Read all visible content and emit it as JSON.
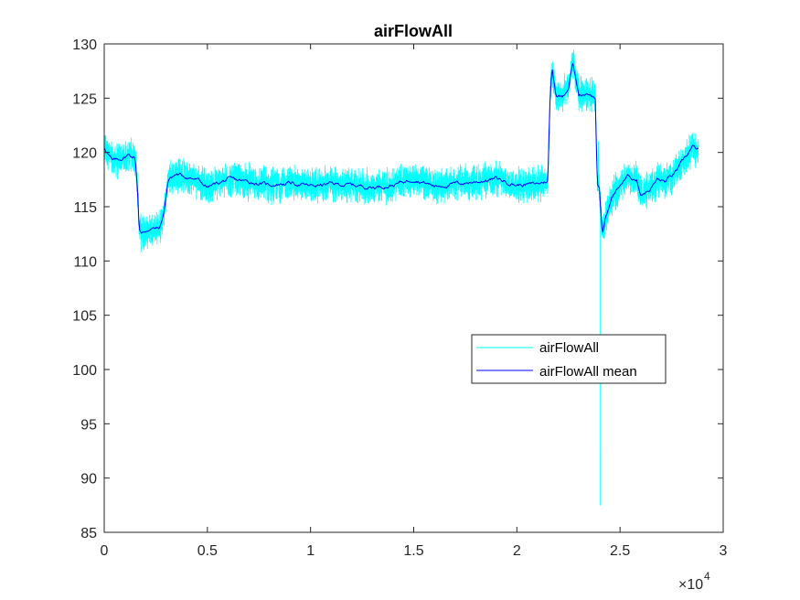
{
  "chart_data": {
    "type": "line",
    "title": "airFlowAll",
    "xlabel": "",
    "ylabel": "",
    "xlim": [
      0,
      30000
    ],
    "ylim": [
      85,
      130
    ],
    "x_exponent_label": "×10",
    "x_exponent_power": "4",
    "x_ticks": [
      0,
      5000,
      10000,
      15000,
      20000,
      25000,
      30000
    ],
    "x_tick_labels": [
      "0",
      "0.5",
      "1",
      "1.5",
      "2",
      "2.5",
      "3"
    ],
    "y_ticks": [
      85,
      90,
      95,
      100,
      105,
      110,
      115,
      120,
      125,
      130
    ],
    "y_tick_labels": [
      "85",
      "90",
      "95",
      "100",
      "105",
      "110",
      "115",
      "120",
      "125",
      "130"
    ],
    "grid": false,
    "legend_position": "center-right",
    "series": [
      {
        "name": "airFlowAll",
        "color": "#00FFFF",
        "kind": "noisy",
        "noise_amplitude": 1.3,
        "x": [
          0,
          400,
          700,
          1200,
          1500,
          1600,
          1700,
          1800,
          2200,
          2700,
          2900,
          3100,
          3500,
          4500,
          5000,
          6000,
          7000,
          8000,
          9000,
          10000,
          11000,
          12000,
          13000,
          14000,
          15000,
          16000,
          17000,
          18000,
          19000,
          20000,
          21000,
          21500,
          21600,
          21700,
          21900,
          22200,
          22500,
          22700,
          23000,
          23500,
          23800,
          23900,
          24000,
          24100,
          24150,
          24300,
          24600,
          25000,
          25400,
          25800,
          26000,
          26400,
          26800,
          27200,
          27600,
          28000,
          28500,
          28800
        ],
        "y": [
          120.5,
          119.2,
          119.3,
          119.8,
          119.5,
          117.0,
          113.0,
          112.5,
          113.0,
          113.0,
          114.5,
          117.5,
          118.0,
          117.5,
          116.8,
          117.5,
          117.3,
          117.0,
          117.2,
          116.9,
          117.1,
          117.0,
          116.8,
          117.0,
          117.6,
          116.9,
          117.1,
          117.3,
          117.6,
          117.0,
          117.1,
          117.4,
          124.5,
          127.8,
          125.3,
          125.2,
          126.0,
          128.3,
          125.3,
          125.5,
          125.0,
          117.0,
          116.5,
          113.5,
          112.5,
          114.0,
          115.8,
          117.0,
          117.8,
          117.5,
          116.2,
          116.5,
          117.5,
          117.3,
          118.0,
          119.0,
          120.5,
          120.2
        ],
        "spikes": [
          {
            "x": 24050,
            "y": 87.5
          },
          {
            "x": 23950,
            "y": 121.0
          }
        ]
      },
      {
        "name": "airFlowAll mean",
        "color": "#0000FF",
        "kind": "smooth",
        "x": [
          0,
          400,
          700,
          1200,
          1500,
          1600,
          1700,
          1800,
          2200,
          2700,
          2900,
          3100,
          3500,
          4500,
          5000,
          6000,
          7000,
          8000,
          9000,
          10000,
          11000,
          12000,
          13000,
          14000,
          15000,
          16000,
          17000,
          18000,
          19000,
          20000,
          21000,
          21500,
          21600,
          21700,
          21900,
          22200,
          22500,
          22700,
          23000,
          23500,
          23800,
          23900,
          24000,
          24100,
          24150,
          24300,
          24600,
          25000,
          25400,
          25800,
          26000,
          26400,
          26800,
          27200,
          27600,
          28000,
          28500,
          28800
        ],
        "y": [
          120.5,
          119.2,
          119.3,
          119.8,
          119.5,
          117.0,
          113.0,
          112.5,
          113.0,
          113.0,
          114.5,
          117.5,
          118.0,
          117.5,
          116.8,
          117.5,
          117.3,
          117.0,
          117.2,
          116.9,
          117.1,
          117.0,
          116.8,
          117.0,
          117.6,
          116.9,
          117.1,
          117.3,
          117.6,
          117.0,
          117.1,
          117.4,
          124.5,
          127.8,
          125.3,
          125.2,
          126.0,
          128.3,
          125.3,
          125.5,
          125.0,
          117.0,
          116.5,
          113.5,
          112.5,
          114.0,
          115.8,
          117.0,
          117.8,
          117.5,
          116.2,
          116.5,
          117.5,
          117.3,
          118.0,
          119.0,
          120.5,
          120.2
        ]
      }
    ]
  }
}
